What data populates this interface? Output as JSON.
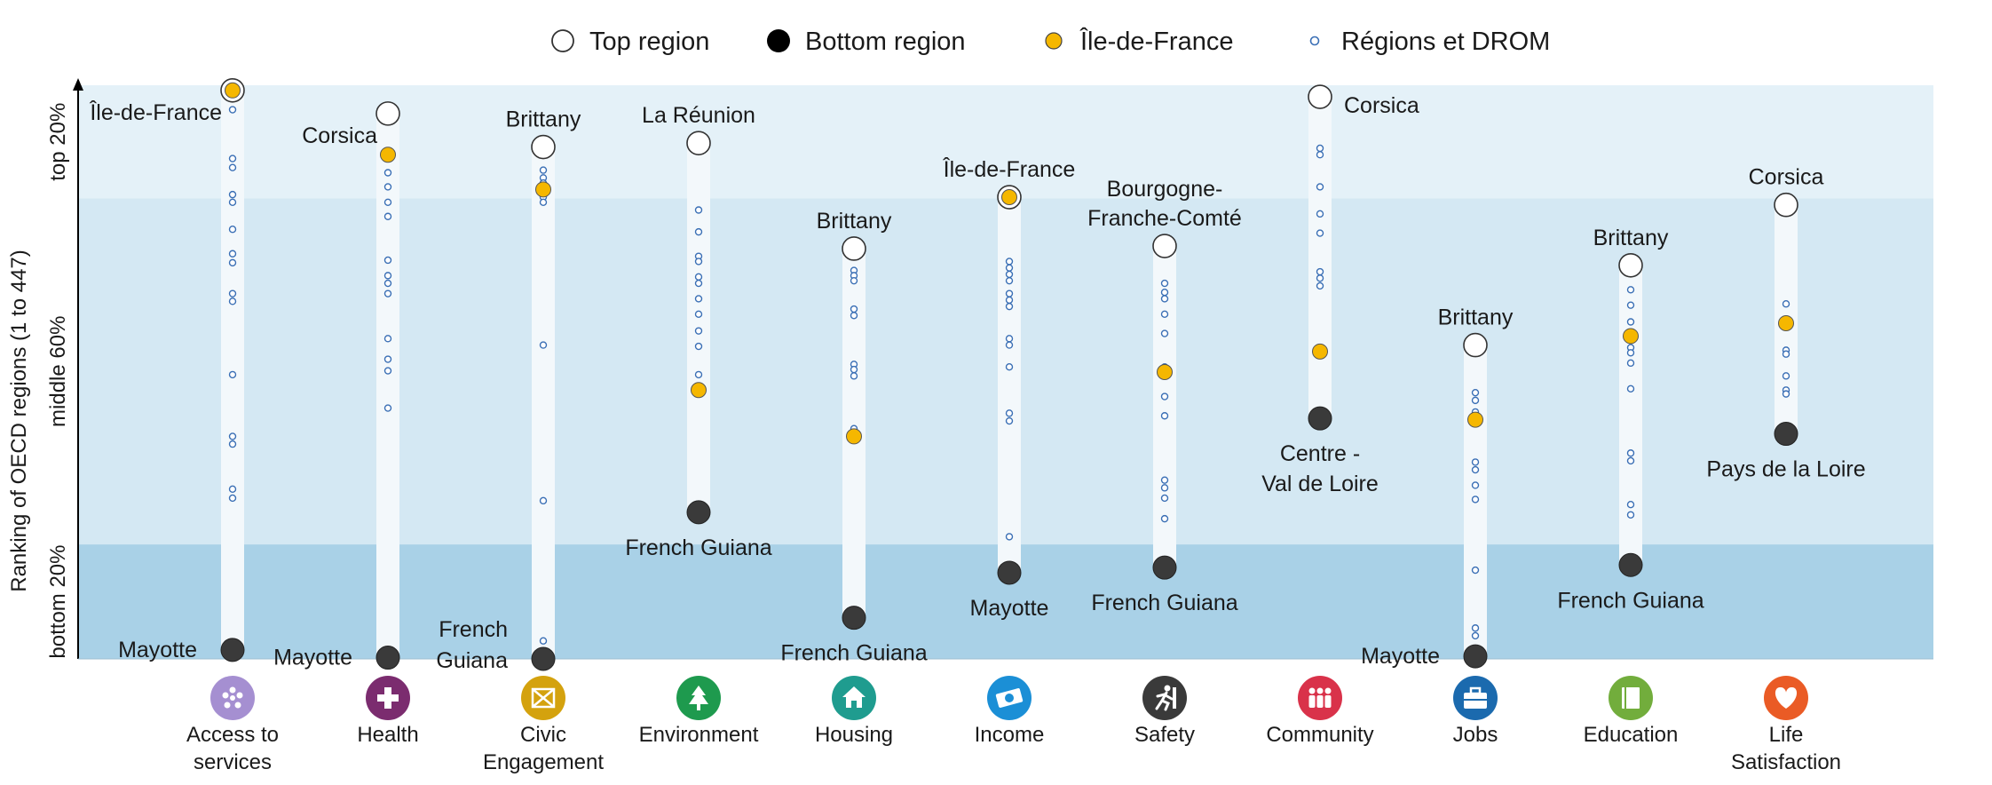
{
  "chart_data": {
    "type": "scatter",
    "ylabel": "Ranking of OECD regions (1 to 447)",
    "ylim": [
      447,
      1
    ],
    "bands": [
      {
        "label": "top 20%",
        "from": 1,
        "to": 89,
        "color": "#e4f1f8"
      },
      {
        "label": "middle 60%",
        "from": 89,
        "to": 358,
        "color": "#d4e8f3"
      },
      {
        "label": "bottom 20%",
        "from": 358,
        "to": 447,
        "color": "#a9d1e7"
      }
    ],
    "legend": [
      {
        "key": "top",
        "label": "Top region"
      },
      {
        "key": "bottom",
        "label": "Bottom region"
      },
      {
        "key": "idf",
        "label": "Île-de-France"
      },
      {
        "key": "other",
        "label": "Régions et DROM"
      }
    ],
    "colors": {
      "top_fill": "#ffffff",
      "bottom_fill": "#3a3a3a",
      "idf_fill": "#f5b700",
      "other_stroke": "#3a6fb5",
      "column": "#f3f8fb",
      "axis": "#000000"
    },
    "categories": [
      {
        "name": [
          "Access to",
          "services"
        ],
        "icon": "access-to-services-icon",
        "icon_color": "#a58fd1",
        "top": {
          "rank": 5,
          "label": [
            "Île-de-France"
          ],
          "anchor": "end"
        },
        "bottom": {
          "rank": 440,
          "label": [
            "Mayotte"
          ],
          "anchor": "end"
        },
        "idf": 5,
        "others": [
          20,
          58,
          65,
          86,
          92,
          113,
          132,
          139,
          163,
          169,
          226,
          274,
          280,
          315,
          322
        ]
      },
      {
        "name": [
          "Health"
        ],
        "icon": "health-icon",
        "icon_color": "#7b2c6f",
        "top": {
          "rank": 23,
          "label": [
            "Corsica"
          ],
          "anchor": "end"
        },
        "bottom": {
          "rank": 446,
          "label": [
            "Mayotte"
          ],
          "anchor": "end"
        },
        "idf": 55,
        "others": [
          69,
          80,
          92,
          103,
          137,
          149,
          155,
          163,
          198,
          214,
          223,
          252
        ]
      },
      {
        "name": [
          "Civic",
          "Engagement"
        ],
        "icon": "civic-engagement-icon",
        "icon_color": "#d4a20e",
        "top": {
          "rank": 49,
          "label": [
            "Brittany"
          ],
          "anchor": "middle"
        },
        "bottom": {
          "rank": 447,
          "label": [
            "French",
            "Guiana"
          ],
          "anchor": "end"
        },
        "idf": 82,
        "others": [
          67,
          73,
          77,
          88,
          92,
          203,
          324,
          433
        ]
      },
      {
        "name": [
          "Environment"
        ],
        "icon": "environment-icon",
        "icon_color": "#1e9a4e",
        "top": {
          "rank": 46,
          "label": [
            "La Réunion"
          ],
          "anchor": "middle"
        },
        "bottom": {
          "rank": 333,
          "label": [
            "French Guiana"
          ],
          "anchor": "middle-below"
        },
        "idf": 238,
        "others": [
          98,
          115,
          134,
          138,
          150,
          155,
          167,
          179,
          192,
          204,
          226
        ]
      },
      {
        "name": [
          "Housing"
        ],
        "icon": "housing-icon",
        "icon_color": "#1f9c8f",
        "top": {
          "rank": 128,
          "label": [
            "Brittany"
          ],
          "anchor": "middle"
        },
        "bottom": {
          "rank": 415,
          "label": [
            "French Guiana"
          ],
          "anchor": "middle-below"
        },
        "idf": 274,
        "others": [
          145,
          149,
          153,
          175,
          180,
          218,
          222,
          227,
          268
        ]
      },
      {
        "name": [
          "Income"
        ],
        "icon": "income-icon",
        "icon_color": "#1b8fd6",
        "top": {
          "rank": 88,
          "label": [
            "Île-de-France"
          ],
          "anchor": "middle"
        },
        "bottom": {
          "rank": 380,
          "label": [
            "Mayotte"
          ],
          "anchor": "middle-below"
        },
        "idf": 88,
        "others": [
          138,
          143,
          148,
          153,
          163,
          168,
          173,
          198,
          203,
          220,
          256,
          262,
          352
        ]
      },
      {
        "name": [
          "Safety"
        ],
        "icon": "safety-icon",
        "icon_color": "#3a3a3a",
        "top": {
          "rank": 126,
          "label": [
            "Bourgogne-",
            "Franche-Comté"
          ],
          "anchor": "middle"
        },
        "bottom": {
          "rank": 376,
          "label": [
            "French Guiana"
          ],
          "anchor": "middle-below"
        },
        "idf": 224,
        "others": [
          155,
          162,
          167,
          179,
          194,
          220,
          243,
          258,
          308,
          314,
          322,
          338
        ]
      },
      {
        "name": [
          "Community"
        ],
        "icon": "community-icon",
        "icon_color": "#d9324a",
        "top": {
          "rank": 10,
          "label": [
            "Corsica"
          ],
          "anchor": "start"
        },
        "bottom": {
          "rank": 260,
          "label": [
            "Centre -",
            "Val de Loire"
          ],
          "anchor": "middle-below"
        },
        "idf": 208,
        "others": [
          50,
          55,
          80,
          101,
          116,
          146,
          151,
          157
        ]
      },
      {
        "name": [
          "Jobs"
        ],
        "icon": "jobs-icon",
        "icon_color": "#1b6aae",
        "top": {
          "rank": 203,
          "label": [
            "Brittany"
          ],
          "anchor": "middle"
        },
        "bottom": {
          "rank": 445,
          "label": [
            "Mayotte"
          ],
          "anchor": "end"
        },
        "idf": 261,
        "others": [
          240,
          246,
          255,
          294,
          300,
          312,
          323,
          378,
          423,
          429
        ]
      },
      {
        "name": [
          "Education"
        ],
        "icon": "education-icon",
        "icon_color": "#72ad3c",
        "top": {
          "rank": 141,
          "label": [
            "Brittany"
          ],
          "anchor": "middle"
        },
        "bottom": {
          "rank": 374,
          "label": [
            "French Guiana"
          ],
          "anchor": "middle-below"
        },
        "idf": 196,
        "others": [
          160,
          172,
          185,
          197,
          205,
          209,
          217,
          237,
          287,
          293,
          327,
          335
        ]
      },
      {
        "name": [
          "Life",
          "Satisfaction"
        ],
        "icon": "life-satisfaction-icon",
        "icon_color": "#ea5b25",
        "top": {
          "rank": 94,
          "label": [
            "Corsica"
          ],
          "anchor": "middle"
        },
        "bottom": {
          "rank": 272,
          "label": [
            "Pays de la Loire"
          ],
          "anchor": "middle-below"
        },
        "idf": 186,
        "others": [
          171,
          207,
          210,
          227,
          238,
          241
        ]
      }
    ]
  }
}
